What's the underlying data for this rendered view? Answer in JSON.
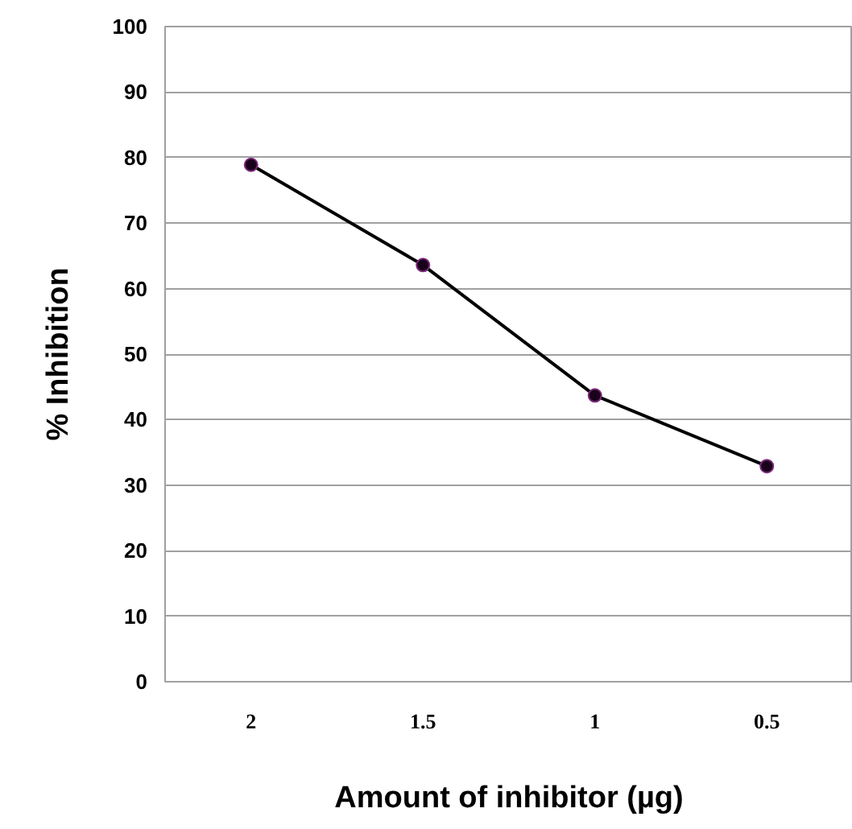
{
  "chart_data": {
    "type": "line",
    "xlabel": "Amount of inhibitor (µg)",
    "ylabel": "% Inhibition",
    "categories": [
      "2",
      "1.5",
      "1",
      "0.5"
    ],
    "series": [
      {
        "color": "#000000",
        "values": [
          78.9,
          63.6,
          43.7,
          32.9
        ]
      }
    ],
    "ylim": [
      0,
      100
    ],
    "yticks": [
      0,
      10,
      20,
      30,
      40,
      50,
      60,
      70,
      80,
      90,
      100
    ],
    "grid": "y",
    "marker": "circle",
    "line_style": "solid"
  }
}
